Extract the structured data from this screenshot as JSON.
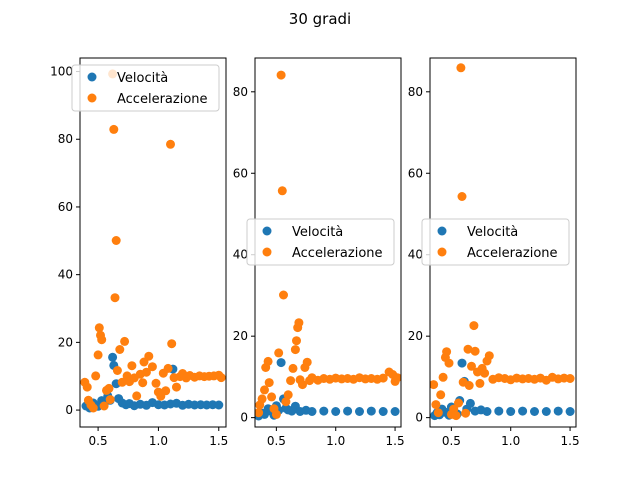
{
  "figure": {
    "title": "30 gradi"
  },
  "colors": {
    "velocita": "#1f77b4",
    "accelerazione": "#ff7f0e"
  },
  "chart_data": [
    {
      "type": "scatter",
      "title": "",
      "xlabel": "",
      "ylabel": "",
      "xlim": [
        0.35,
        1.56
      ],
      "ylim": [
        -5,
        104
      ],
      "xticks": [
        0.5,
        1.0,
        1.5
      ],
      "xtick_labels": [
        "0.5",
        "1.0",
        "1.5"
      ],
      "yticks": [
        0,
        20,
        40,
        60,
        80,
        100
      ],
      "ytick_labels": [
        "0",
        "20",
        "40",
        "60",
        "80",
        "100"
      ],
      "grid": false,
      "legend": {
        "placement": "upper-right",
        "entries": [
          "Velocità",
          "Accelerazione"
        ]
      },
      "series": [
        {
          "name": "Velocità",
          "color": "#1f77b4",
          "points": [
            [
              0.4,
              1.2
            ],
            [
              0.43,
              0.6
            ],
            [
              0.46,
              2.1
            ],
            [
              0.5,
              1.1
            ],
            [
              0.53,
              2.8
            ],
            [
              0.55,
              1.9
            ],
            [
              0.58,
              4.2
            ],
            [
              0.6,
              2.9
            ],
            [
              0.62,
              15.6
            ],
            [
              0.63,
              13.2
            ],
            [
              0.65,
              7.8
            ],
            [
              0.67,
              3.4
            ],
            [
              0.7,
              2.1
            ],
            [
              0.73,
              1.6
            ],
            [
              0.76,
              1.9
            ],
            [
              0.8,
              1.3
            ],
            [
              0.85,
              1.7
            ],
            [
              0.9,
              1.4
            ],
            [
              0.95,
              2.2
            ],
            [
              1.0,
              1.6
            ],
            [
              1.05,
              1.5
            ],
            [
              1.1,
              1.8
            ],
            [
              1.12,
              12.1
            ],
            [
              1.15,
              2.0
            ],
            [
              1.2,
              1.4
            ],
            [
              1.25,
              1.7
            ],
            [
              1.3,
              1.5
            ],
            [
              1.35,
              1.6
            ],
            [
              1.4,
              1.5
            ],
            [
              1.45,
              1.6
            ],
            [
              1.5,
              1.5
            ]
          ]
        },
        {
          "name": "Accelerazione",
          "color": "#ff7f0e",
          "points": [
            [
              0.39,
              8.2
            ],
            [
              0.41,
              6.8
            ],
            [
              0.42,
              2.9
            ],
            [
              0.44,
              1.5
            ],
            [
              0.46,
              0.6
            ],
            [
              0.48,
              10.1
            ],
            [
              0.5,
              16.3
            ],
            [
              0.51,
              24.3
            ],
            [
              0.52,
              22.1
            ],
            [
              0.53,
              20.8
            ],
            [
              0.55,
              1.2
            ],
            [
              0.57,
              5.8
            ],
            [
              0.59,
              6.4
            ],
            [
              0.6,
              3.1
            ],
            [
              0.62,
              99.3
            ],
            [
              0.63,
              82.9
            ],
            [
              0.65,
              50.1
            ],
            [
              0.64,
              33.2
            ],
            [
              0.66,
              11.7
            ],
            [
              0.68,
              17.9
            ],
            [
              0.7,
              8.2
            ],
            [
              0.72,
              20.3
            ],
            [
              0.74,
              10.1
            ],
            [
              0.76,
              8.4
            ],
            [
              0.78,
              13.1
            ],
            [
              0.8,
              9.5
            ],
            [
              0.82,
              4.2
            ],
            [
              0.85,
              10.6
            ],
            [
              0.87,
              8.1
            ],
            [
              0.88,
              14.2
            ],
            [
              0.9,
              11.2
            ],
            [
              0.92,
              15.9
            ],
            [
              0.95,
              12.8
            ],
            [
              0.98,
              7.9
            ],
            [
              1.0,
              5.3
            ],
            [
              1.02,
              4.1
            ],
            [
              1.04,
              10.9
            ],
            [
              1.06,
              5.7
            ],
            [
              1.08,
              12.3
            ],
            [
              1.1,
              78.5
            ],
            [
              1.11,
              19.6
            ],
            [
              1.13,
              9.6
            ],
            [
              1.15,
              6.8
            ],
            [
              1.18,
              9.9
            ],
            [
              1.2,
              10.8
            ],
            [
              1.23,
              9.5
            ],
            [
              1.26,
              10.2
            ],
            [
              1.3,
              9.7
            ],
            [
              1.34,
              10.1
            ],
            [
              1.38,
              9.9
            ],
            [
              1.42,
              10.0
            ],
            [
              1.46,
              10.1
            ],
            [
              1.5,
              10.3
            ],
            [
              1.52,
              9.6
            ]
          ]
        }
      ]
    },
    {
      "type": "scatter",
      "title": "",
      "xlabel": "",
      "ylabel": "",
      "xlim": [
        0.32,
        1.55
      ],
      "ylim": [
        -2.3,
        88.3
      ],
      "xticks": [
        0.5,
        1.0,
        1.5
      ],
      "xtick_labels": [
        "0.5",
        "1.0",
        "1.5"
      ],
      "yticks": [
        0,
        20,
        40,
        60,
        80
      ],
      "ytick_labels": [
        "0",
        "20",
        "40",
        "60",
        "80"
      ],
      "grid": false,
      "legend": {
        "placement": "center-right",
        "entries": [
          "Velocità",
          "Accelerazione"
        ]
      },
      "series": [
        {
          "name": "Velocità",
          "color": "#1f77b4",
          "points": [
            [
              0.35,
              0.4
            ],
            [
              0.38,
              1.1
            ],
            [
              0.4,
              0.8
            ],
            [
              0.43,
              2.2
            ],
            [
              0.46,
              1.5
            ],
            [
              0.48,
              0.6
            ],
            [
              0.5,
              2.9
            ],
            [
              0.52,
              1.8
            ],
            [
              0.54,
              13.5
            ],
            [
              0.56,
              4.6
            ],
            [
              0.58,
              2.3
            ],
            [
              0.6,
              1.9
            ],
            [
              0.63,
              1.6
            ],
            [
              0.66,
              2.8
            ],
            [
              0.7,
              1.5
            ],
            [
              0.75,
              1.8
            ],
            [
              0.8,
              1.5
            ],
            [
              0.9,
              1.6
            ],
            [
              1.0,
              1.5
            ],
            [
              1.1,
              1.6
            ],
            [
              1.2,
              1.5
            ],
            [
              1.3,
              1.6
            ],
            [
              1.4,
              1.5
            ],
            [
              1.5,
              1.5
            ]
          ]
        },
        {
          "name": "Accelerazione",
          "color": "#ff7f0e",
          "points": [
            [
              0.35,
              1.2
            ],
            [
              0.36,
              3.1
            ],
            [
              0.38,
              4.6
            ],
            [
              0.4,
              6.8
            ],
            [
              0.41,
              12.3
            ],
            [
              0.43,
              13.8
            ],
            [
              0.44,
              8.6
            ],
            [
              0.46,
              5.1
            ],
            [
              0.48,
              2.2
            ],
            [
              0.5,
              0.8
            ],
            [
              0.52,
              15.9
            ],
            [
              0.54,
              84.1
            ],
            [
              0.55,
              55.7
            ],
            [
              0.56,
              30.1
            ],
            [
              0.58,
              3.9
            ],
            [
              0.6,
              5.6
            ],
            [
              0.62,
              9.1
            ],
            [
              0.64,
              12.1
            ],
            [
              0.66,
              16.7
            ],
            [
              0.67,
              18.9
            ],
            [
              0.68,
              22.1
            ],
            [
              0.69,
              23.3
            ],
            [
              0.7,
              9.3
            ],
            [
              0.72,
              8.1
            ],
            [
              0.74,
              12.3
            ],
            [
              0.76,
              13.6
            ],
            [
              0.78,
              9.1
            ],
            [
              0.8,
              9.8
            ],
            [
              0.85,
              9.2
            ],
            [
              0.9,
              9.6
            ],
            [
              0.95,
              9.4
            ],
            [
              1.0,
              9.7
            ],
            [
              1.05,
              9.5
            ],
            [
              1.1,
              9.6
            ],
            [
              1.15,
              9.4
            ],
            [
              1.2,
              9.8
            ],
            [
              1.25,
              9.5
            ],
            [
              1.3,
              9.6
            ],
            [
              1.35,
              9.4
            ],
            [
              1.4,
              9.7
            ],
            [
              1.45,
              11.2
            ],
            [
              1.48,
              10.6
            ],
            [
              1.5,
              8.9
            ],
            [
              1.52,
              9.8
            ]
          ]
        }
      ]
    },
    {
      "type": "scatter",
      "title": "",
      "xlabel": "",
      "ylabel": "",
      "xlim": [
        0.32,
        1.55
      ],
      "ylim": [
        -2.3,
        88.3
      ],
      "xticks": [
        0.5,
        1.0,
        1.5
      ],
      "xtick_labels": [
        "0.5",
        "1.0",
        "1.5"
      ],
      "yticks": [
        0,
        20,
        40,
        60,
        80
      ],
      "ytick_labels": [
        "0",
        "20",
        "40",
        "60",
        "80"
      ],
      "grid": false,
      "legend": {
        "placement": "center-right",
        "entries": [
          "Velocità",
          "Accelerazione"
        ]
      },
      "series": [
        {
          "name": "Velocità",
          "color": "#1f77b4",
          "points": [
            [
              0.36,
              0.5
            ],
            [
              0.38,
              1.2
            ],
            [
              0.4,
              0.7
            ],
            [
              0.42,
              2.1
            ],
            [
              0.45,
              1.3
            ],
            [
              0.48,
              0.6
            ],
            [
              0.5,
              2.6
            ],
            [
              0.52,
              1.5
            ],
            [
              0.55,
              0.9
            ],
            [
              0.57,
              4.2
            ],
            [
              0.59,
              13.4
            ],
            [
              0.61,
              8.9
            ],
            [
              0.63,
              2.1
            ],
            [
              0.66,
              3.5
            ],
            [
              0.7,
              1.6
            ],
            [
              0.75,
              1.9
            ],
            [
              0.8,
              1.5
            ],
            [
              0.9,
              1.6
            ],
            [
              1.0,
              1.5
            ],
            [
              1.1,
              1.6
            ],
            [
              1.2,
              1.5
            ],
            [
              1.3,
              1.5
            ],
            [
              1.4,
              1.6
            ],
            [
              1.5,
              1.5
            ]
          ]
        },
        {
          "name": "Accelerazione",
          "color": "#ff7f0e",
          "points": [
            [
              0.35,
              8.1
            ],
            [
              0.37,
              3.2
            ],
            [
              0.39,
              1.2
            ],
            [
              0.41,
              5.6
            ],
            [
              0.43,
              9.9
            ],
            [
              0.45,
              14.8
            ],
            [
              0.46,
              16.2
            ],
            [
              0.48,
              13.4
            ],
            [
              0.5,
              0.8
            ],
            [
              0.52,
              2.1
            ],
            [
              0.54,
              0.5
            ],
            [
              0.56,
              3.6
            ],
            [
              0.58,
              85.9
            ],
            [
              0.59,
              54.3
            ],
            [
              0.6,
              8.7
            ],
            [
              0.62,
              1.1
            ],
            [
              0.64,
              16.8
            ],
            [
              0.65,
              7.9
            ],
            [
              0.67,
              12.6
            ],
            [
              0.69,
              22.6
            ],
            [
              0.7,
              16.3
            ],
            [
              0.72,
              11.2
            ],
            [
              0.74,
              8.4
            ],
            [
              0.76,
              12.1
            ],
            [
              0.78,
              10.9
            ],
            [
              0.8,
              13.9
            ],
            [
              0.82,
              15.2
            ],
            [
              0.85,
              9.4
            ],
            [
              0.9,
              9.8
            ],
            [
              0.95,
              9.6
            ],
            [
              1.0,
              9.3
            ],
            [
              1.05,
              9.7
            ],
            [
              1.1,
              9.5
            ],
            [
              1.15,
              9.6
            ],
            [
              1.2,
              9.4
            ],
            [
              1.25,
              9.7
            ],
            [
              1.3,
              9.2
            ],
            [
              1.35,
              9.9
            ],
            [
              1.4,
              9.5
            ],
            [
              1.45,
              9.7
            ],
            [
              1.5,
              9.6
            ]
          ]
        }
      ]
    }
  ]
}
